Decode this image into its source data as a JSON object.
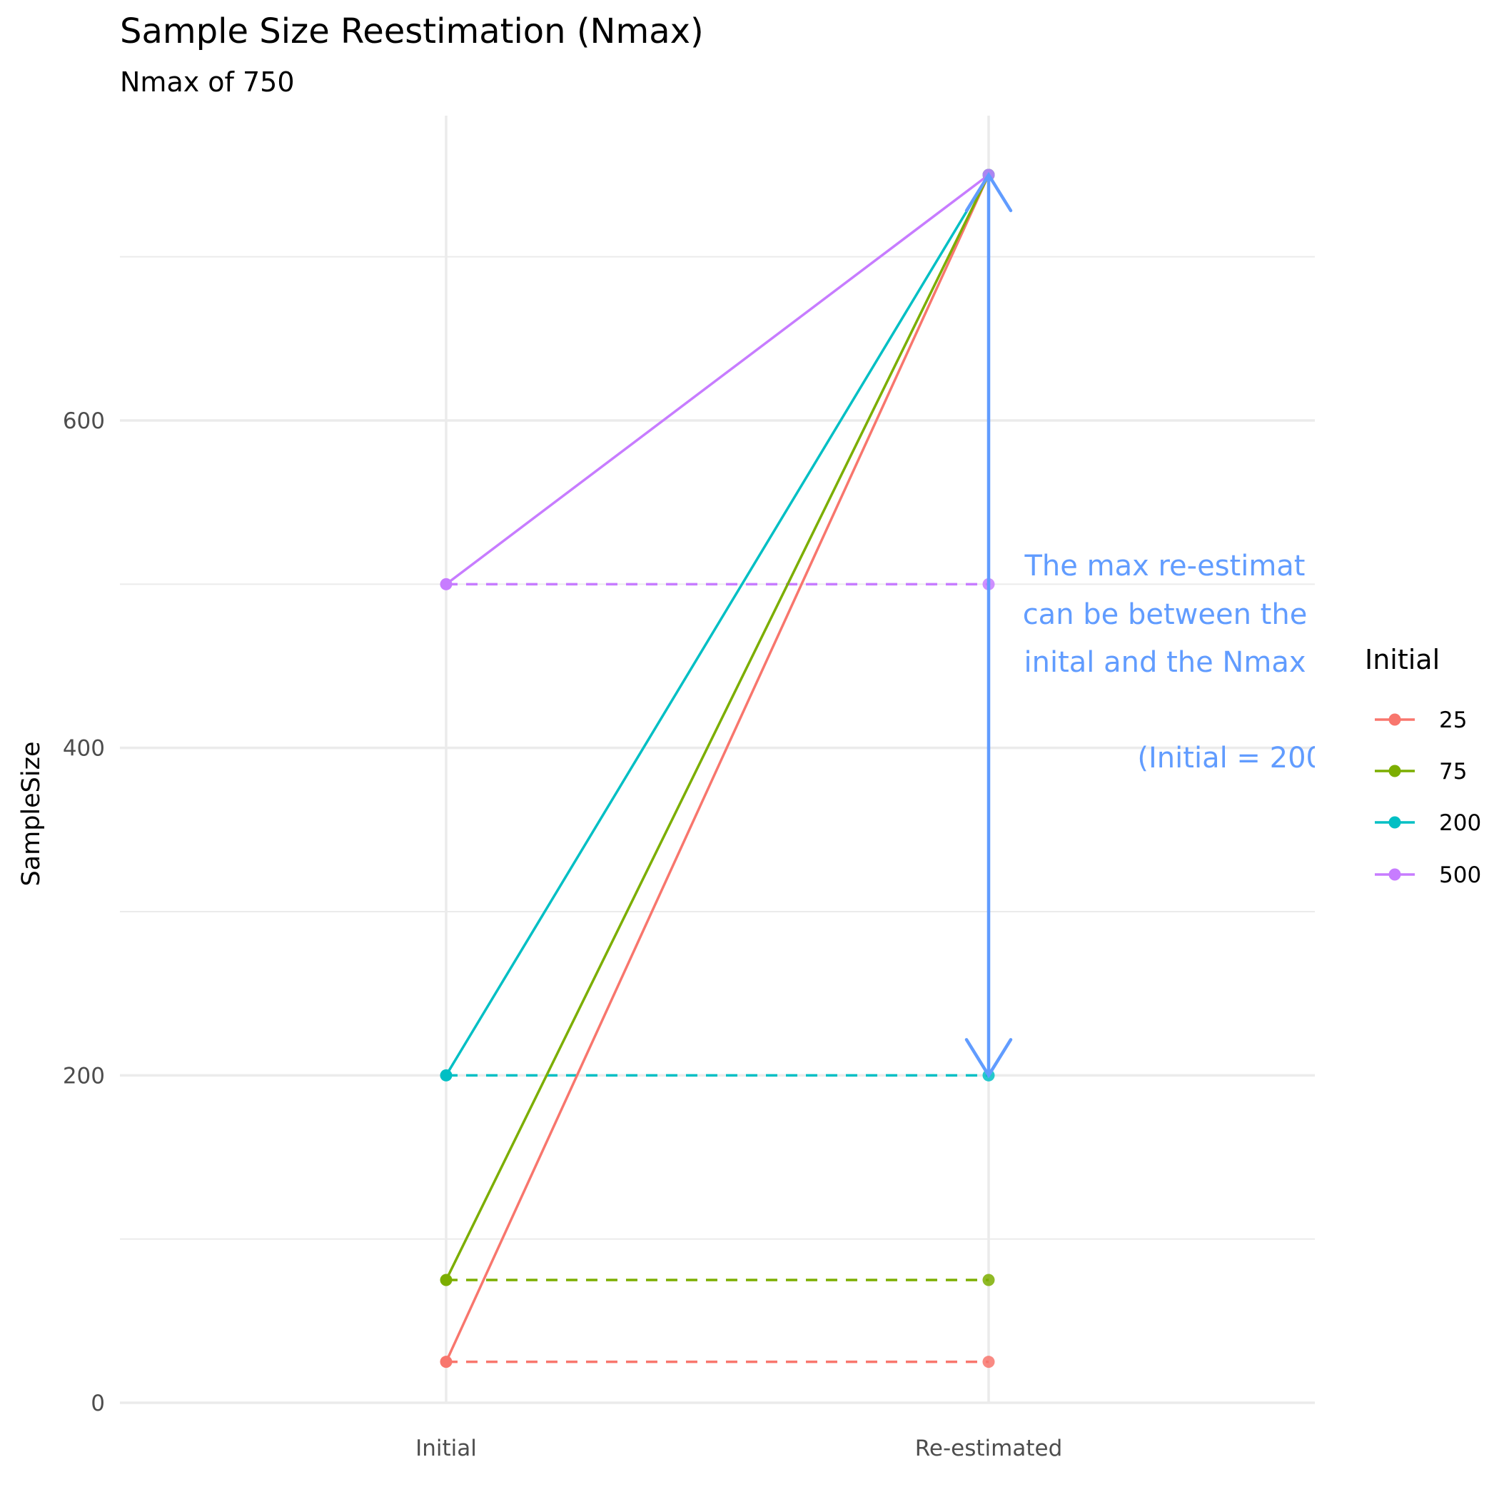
{
  "chart_data": {
    "type": "line",
    "title": "Sample Size Reestimation (Nmax)",
    "subtitle": "Nmax of 750",
    "xlabel": "",
    "ylabel": "SampleSize",
    "categories": [
      "Initial",
      "Re-estimated"
    ],
    "ylim": [
      0,
      750
    ],
    "y_ticks": [
      0,
      200,
      400,
      600
    ],
    "y_ticks_labels": [
      "0",
      "200",
      "400",
      "600"
    ],
    "grid": true,
    "legend": {
      "title": "Initial",
      "placement": "right"
    },
    "series": [
      {
        "name": "25",
        "color": "#F8766D",
        "initial": 25,
        "reestimated_max": 750,
        "reestimated_min": 25
      },
      {
        "name": "75",
        "color": "#7CAE00",
        "initial": 75,
        "reestimated_max": 750,
        "reestimated_min": 75
      },
      {
        "name": "200",
        "color": "#00BFC4",
        "initial": 200,
        "reestimated_max": 750,
        "reestimated_min": 200
      },
      {
        "name": "500",
        "color": "#C77CFF",
        "initial": 500,
        "reestimated_max": 750,
        "reestimated_min": 500
      }
    ],
    "annotation": {
      "color": "#619CFF",
      "arrow_from": 200,
      "arrow_to": 750,
      "lines": [
        "The max re-estimat",
        "can be between the",
        "inital and the Nmax",
        "",
        "(Initial = 200"
      ]
    }
  }
}
